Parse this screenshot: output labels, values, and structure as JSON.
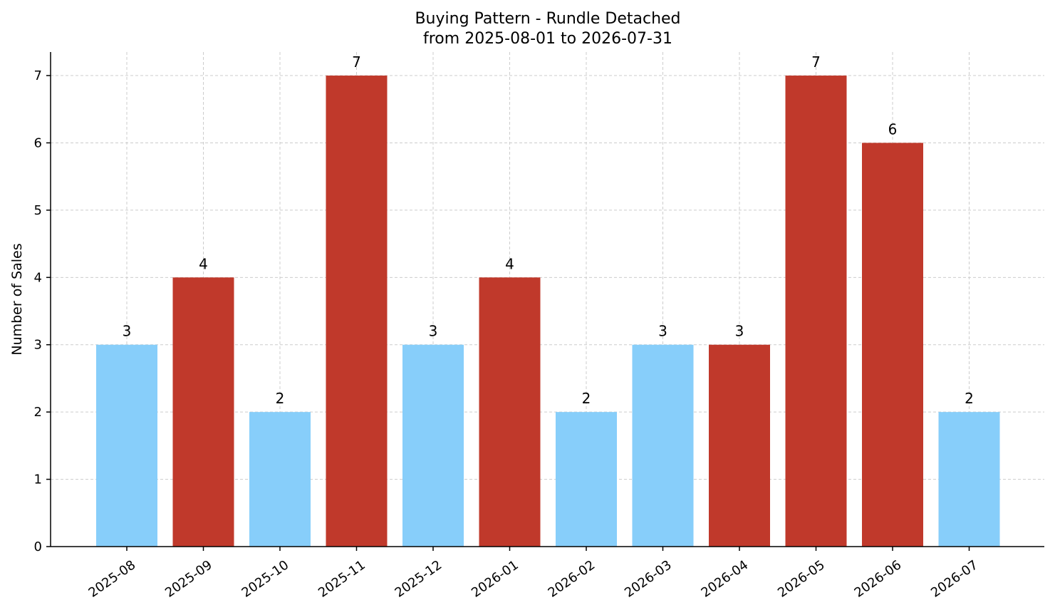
{
  "chart_data": {
    "type": "bar",
    "title": "Buying Pattern - Rundle Detached",
    "subtitle": "from 2025-08-01 to 2026-07-31",
    "xlabel": "",
    "ylabel": "Number of Sales",
    "categories": [
      "2025-08",
      "2025-09",
      "2025-10",
      "2025-11",
      "2025-12",
      "2026-01",
      "2026-02",
      "2026-03",
      "2026-04",
      "2026-05",
      "2026-06",
      "2026-07"
    ],
    "values": [
      3,
      4,
      2,
      7,
      3,
      4,
      2,
      3,
      3,
      7,
      6,
      2
    ],
    "bar_colors": [
      "#87CEFA",
      "#C0392B",
      "#87CEFA",
      "#C0392B",
      "#87CEFA",
      "#C0392B",
      "#87CEFA",
      "#87CEFA",
      "#C0392B",
      "#C0392B",
      "#C0392B",
      "#87CEFA"
    ],
    "yticks": [
      0,
      1,
      2,
      3,
      4,
      5,
      6,
      7
    ],
    "ylim": [
      0,
      7.35
    ],
    "grid": true
  }
}
